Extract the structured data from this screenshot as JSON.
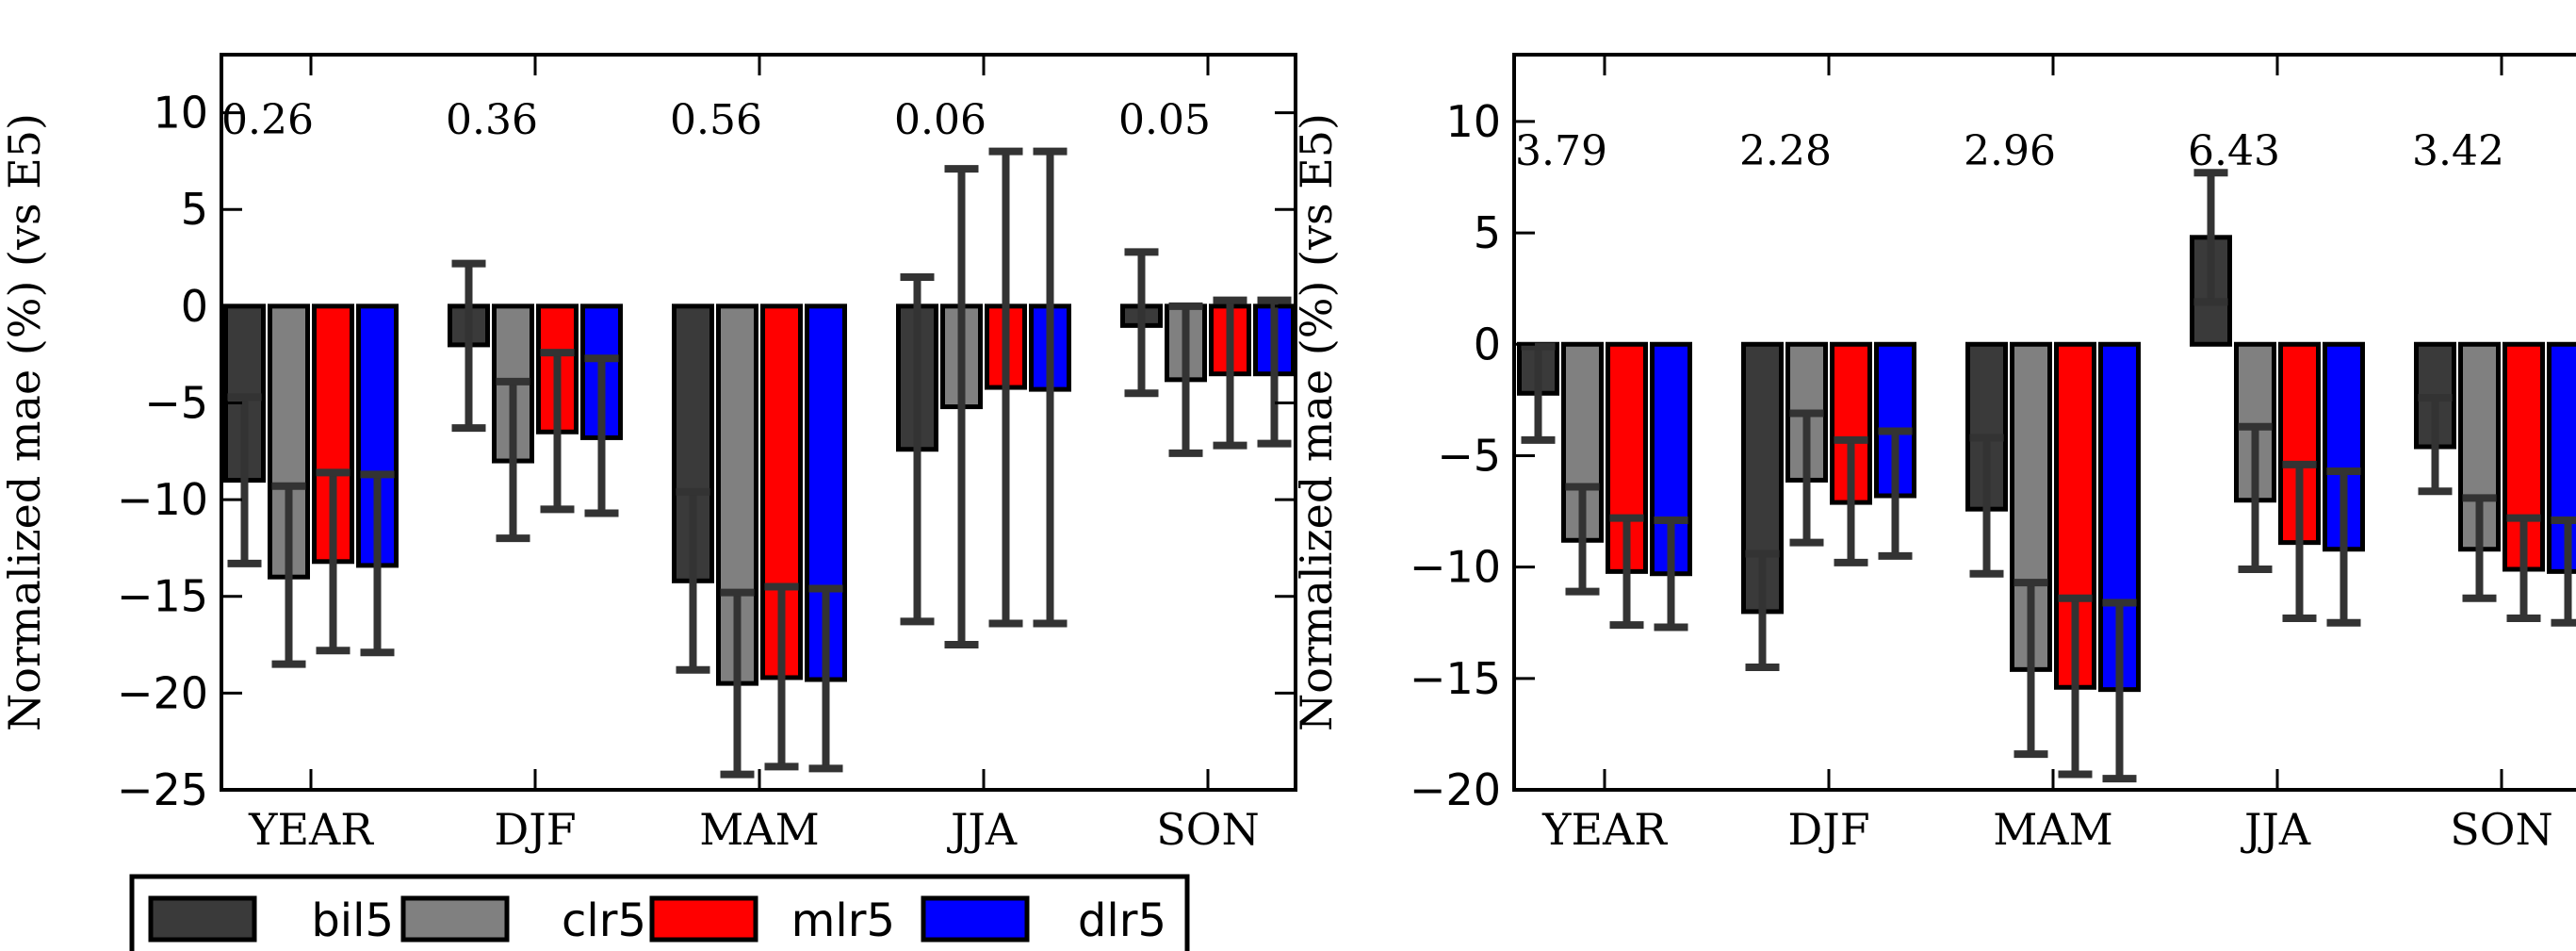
{
  "chart_data": [
    {
      "type": "bar",
      "title": "",
      "ylabel": "Normalized mae (%)  (vs E5)",
      "xlabel": "",
      "ylim": [
        -25,
        13
      ],
      "yticks": [
        10,
        5,
        0,
        -5,
        -10,
        -15,
        -20,
        -25
      ],
      "yticklabels": [
        "10",
        "5",
        "0",
        "−5",
        "−10",
        "−15",
        "−20",
        "−25"
      ],
      "categories": [
        "YEAR",
        "DJF",
        "MAM",
        "JJA",
        "SON"
      ],
      "annotations": [
        "0.26",
        "0.36",
        "0.56",
        "0.06",
        "0.05"
      ],
      "series": [
        {
          "name": "bil5",
          "color": "#3a3a3a",
          "values": [
            -9.0,
            -2.0,
            -14.2,
            -7.4,
            -1.0
          ],
          "err_low": [
            -13.3,
            -6.3,
            -18.8,
            -16.3,
            -4.5
          ],
          "err_high": [
            -4.7,
            2.2,
            -9.6,
            1.5,
            2.8
          ]
        },
        {
          "name": "clr5",
          "color": "#808080",
          "values": [
            -14.0,
            -8.0,
            -19.5,
            -5.2,
            -3.8
          ],
          "err_low": [
            -18.5,
            -12.0,
            -24.2,
            -17.5,
            -7.6
          ],
          "err_high": [
            -9.3,
            -3.9,
            -14.8,
            7.1,
            0.0
          ]
        },
        {
          "name": "mlr5",
          "color": "#ff0000",
          "values": [
            -13.2,
            -6.5,
            -19.2,
            -4.2,
            -3.5
          ],
          "err_low": [
            -17.8,
            -10.5,
            -23.8,
            -16.4,
            -7.2
          ],
          "err_high": [
            -8.6,
            -2.4,
            -14.5,
            8.0,
            0.3
          ]
        },
        {
          "name": "dlr5",
          "color": "#0000ff",
          "values": [
            -13.4,
            -6.8,
            -19.3,
            -4.3,
            -3.5
          ],
          "err_low": [
            -17.9,
            -10.7,
            -23.9,
            -16.4,
            -7.1
          ],
          "err_high": [
            -8.7,
            -2.7,
            -14.6,
            8.0,
            0.3
          ]
        }
      ]
    },
    {
      "type": "bar",
      "title": "",
      "ylabel": "Normalized mae (%)  (vs E5)",
      "xlabel": "",
      "ylim": [
        -20,
        13
      ],
      "yticks": [
        10,
        5,
        0,
        -5,
        -10,
        -15,
        -20
      ],
      "yticklabels": [
        "10",
        "5",
        "0",
        "−5",
        "−10",
        "−15",
        "−20"
      ],
      "categories": [
        "YEAR",
        "DJF",
        "MAM",
        "JJA",
        "SON"
      ],
      "annotations": [
        "3.79",
        "2.28",
        "2.96",
        "6.43",
        "3.42"
      ],
      "series": [
        {
          "name": "bil5",
          "color": "#3a3a3a",
          "values": [
            -2.2,
            -12.0,
            -7.4,
            4.8,
            -4.6
          ],
          "err_low": [
            -4.3,
            -14.5,
            -10.3,
            1.9,
            -6.6
          ],
          "err_high": [
            -0.1,
            -9.4,
            -4.2,
            7.7,
            -2.4
          ]
        },
        {
          "name": "clr5",
          "color": "#808080",
          "values": [
            -8.8,
            -6.1,
            -14.6,
            -7.0,
            -9.2
          ],
          "err_low": [
            -11.1,
            -8.9,
            -18.4,
            -10.1,
            -11.4
          ],
          "err_high": [
            -6.4,
            -3.1,
            -10.7,
            -3.7,
            -6.9
          ]
        },
        {
          "name": "mlr5",
          "color": "#ff0000",
          "values": [
            -10.2,
            -7.1,
            -15.4,
            -8.9,
            -10.1
          ],
          "err_low": [
            -12.6,
            -9.8,
            -19.3,
            -12.3,
            -12.3
          ],
          "err_high": [
            -7.8,
            -4.3,
            -11.4,
            -5.4,
            -7.8
          ]
        },
        {
          "name": "dlr5",
          "color": "#0000ff",
          "values": [
            -10.3,
            -6.8,
            -15.5,
            -9.2,
            -10.2
          ],
          "err_low": [
            -12.7,
            -9.5,
            -19.5,
            -12.5,
            -12.5
          ],
          "err_high": [
            -7.9,
            -3.9,
            -11.6,
            -5.7,
            -7.9
          ]
        }
      ]
    }
  ],
  "legend": {
    "placement": "bottom-left",
    "items": [
      {
        "name": "bil5",
        "color": "#3a3a3a"
      },
      {
        "name": "clr5",
        "color": "#808080"
      },
      {
        "name": "mlr5",
        "color": "#ff0000"
      },
      {
        "name": "dlr5",
        "color": "#0000ff"
      }
    ]
  }
}
